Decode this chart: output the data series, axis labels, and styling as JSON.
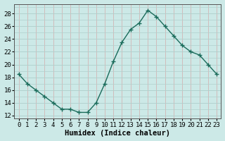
{
  "x": [
    0,
    1,
    2,
    3,
    4,
    5,
    6,
    7,
    8,
    9,
    10,
    11,
    12,
    13,
    14,
    15,
    16,
    17,
    18,
    19,
    20,
    21,
    22,
    23
  ],
  "y": [
    18.5,
    17.0,
    16.0,
    15.0,
    14.0,
    13.0,
    13.0,
    12.5,
    12.5,
    14.0,
    17.0,
    20.5,
    23.5,
    25.5,
    26.5,
    28.5,
    27.5,
    26.0,
    24.5,
    23.0,
    22.0,
    21.5,
    20.0,
    18.5
  ],
  "line_color": "#1a6b5a",
  "marker": "+",
  "marker_size": 4,
  "linewidth": 1.0,
  "bg_color": "#cce9e7",
  "grid_color_h": "#b0d0cd",
  "grid_color_v": "#d4aaaa",
  "xlabel": "Humidex (Indice chaleur)",
  "xlim": [
    -0.5,
    23.5
  ],
  "ylim": [
    11.5,
    29.5
  ],
  "yticks": [
    12,
    14,
    16,
    18,
    20,
    22,
    24,
    26,
    28
  ],
  "xtick_labels": [
    "0",
    "1",
    "2",
    "3",
    "4",
    "5",
    "6",
    "7",
    "8",
    "9",
    "10",
    "11",
    "12",
    "13",
    "14",
    "15",
    "16",
    "17",
    "18",
    "19",
    "20",
    "21",
    "22",
    "23"
  ],
  "xlabel_fontsize": 7.5,
  "tick_fontsize": 6.5
}
